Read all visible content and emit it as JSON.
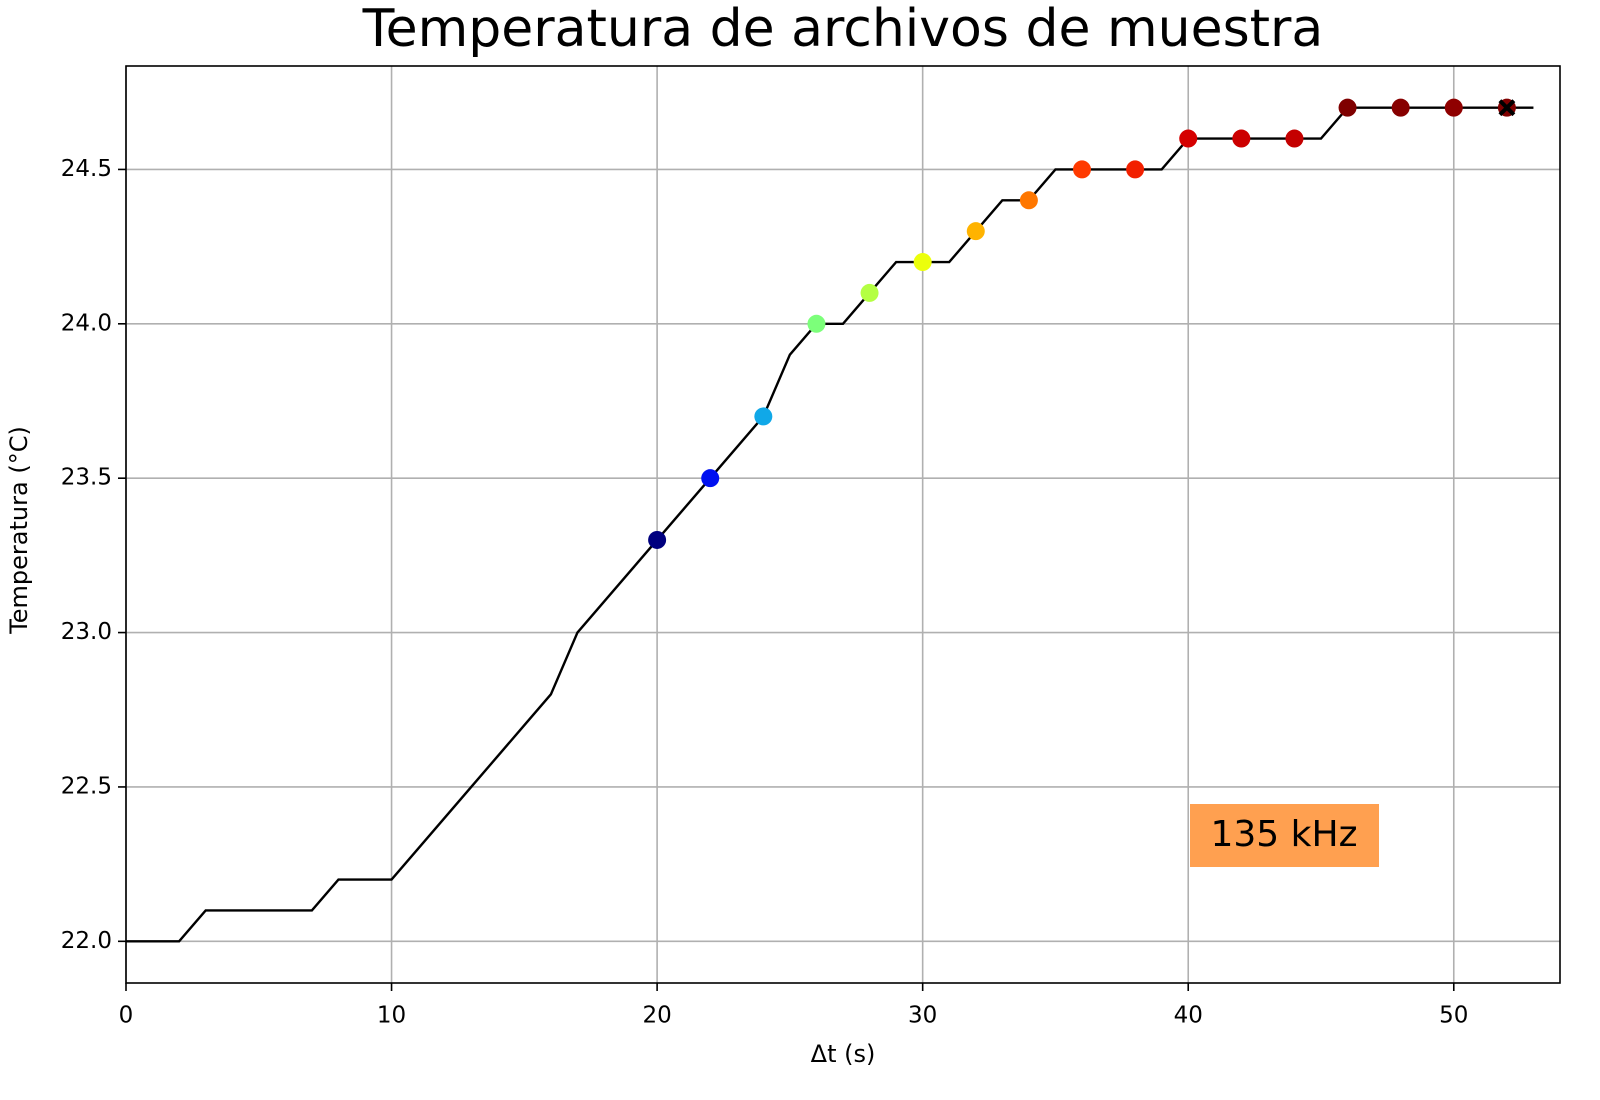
{
  "chart_data": {
    "type": "line",
    "title": "Temperatura de archivos de muestra",
    "x_label": "Δt (s)",
    "y_label": "Temperatura (°C)",
    "x": [
      0,
      1,
      2,
      3,
      4,
      5,
      6,
      7,
      8,
      9,
      10,
      11,
      12,
      13,
      14,
      15,
      16,
      17,
      18,
      19,
      20,
      21,
      22,
      23,
      24,
      25,
      26,
      27,
      28,
      29,
      30,
      31,
      32,
      33,
      34,
      35,
      36,
      37,
      38,
      39,
      40,
      41,
      42,
      43,
      44,
      45,
      46,
      47,
      48,
      49,
      50,
      51,
      52,
      53
    ],
    "values": [
      22.0,
      22.0,
      22.0,
      22.1,
      22.1,
      22.1,
      22.1,
      22.1,
      22.2,
      22.2,
      22.2,
      22.3,
      22.4,
      22.5,
      22.6,
      22.7,
      22.8,
      23.0,
      23.1,
      23.2,
      23.3,
      23.4,
      23.5,
      23.6,
      23.7,
      23.9,
      24.0,
      24.0,
      24.1,
      24.2,
      24.2,
      24.2,
      24.3,
      24.4,
      24.4,
      24.5,
      24.5,
      24.5,
      24.5,
      24.5,
      24.6,
      24.6,
      24.6,
      24.6,
      24.6,
      24.6,
      24.7,
      24.7,
      24.7,
      24.7,
      24.7,
      24.7,
      24.7,
      24.7
    ],
    "color": "#000000",
    "points": {
      "x": [
        20,
        22,
        24,
        26,
        28,
        30,
        32,
        34,
        36,
        38,
        40,
        42,
        44,
        46,
        48,
        50,
        52
      ],
      "values": [
        23.3,
        23.5,
        23.7,
        24.0,
        24.1,
        24.2,
        24.3,
        24.4,
        24.5,
        24.5,
        24.6,
        24.6,
        24.6,
        24.7,
        24.7,
        24.7,
        24.7
      ],
      "colors": [
        "#00007f",
        "#0010f0",
        "#10a8e8",
        "#7cff7a",
        "#b4ff43",
        "#ecff0b",
        "#ffb300",
        "#ff7700",
        "#ff3a00",
        "#f22000",
        "#d50000",
        "#cc0000",
        "#c40000",
        "#7f0000",
        "#870000",
        "#8f0000",
        "#800000"
      ]
    },
    "end_marker": {
      "x": 52,
      "y": 24.7,
      "color": "#000000"
    },
    "annotation": {
      "text": "135 kHz",
      "color": "#ffa050"
    },
    "xlim": [
      0,
      54
    ],
    "ylim": [
      21.865,
      24.835
    ],
    "xticks": [
      0,
      10,
      20,
      30,
      40,
      50
    ],
    "yticks": [
      {
        "value": 22,
        "label": "22.0"
      },
      22.5,
      {
        "value": 23,
        "label": "23.0"
      },
      23.5,
      {
        "value": 24,
        "label": "24.0"
      },
      24.5
    ],
    "grid": true
  }
}
